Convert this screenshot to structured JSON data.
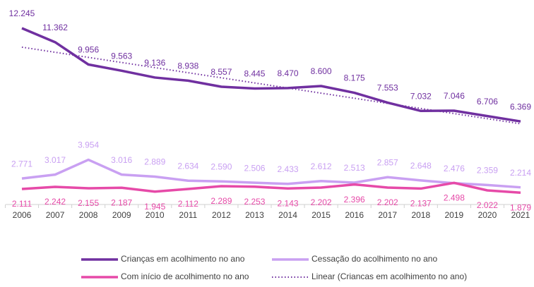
{
  "chart_data": {
    "type": "line",
    "categories": [
      "2006",
      "2007",
      "2008",
      "2009",
      "2010",
      "2011",
      "2012",
      "2013",
      "2014",
      "2015",
      "2016",
      "2017",
      "2018",
      "2019",
      "2020",
      "2021"
    ],
    "ylim": [
      1000,
      13000
    ],
    "grid": false,
    "legend": "bottom",
    "series": [
      {
        "name": "Crianças em acolhimento no ano",
        "color": "#7030a0",
        "style": "solid",
        "label_position": "above",
        "values": [
          12245,
          11362,
          9956,
          9563,
          9136,
          8938,
          8557,
          8445,
          8470,
          8600,
          8175,
          7553,
          7032,
          7046,
          6706,
          6369
        ],
        "value_labels": [
          "12.245",
          "11.362",
          "9.956",
          "9.563",
          "9.136",
          "8.938",
          "8.557",
          "8.445",
          "8.470",
          "8.600",
          "8.175",
          "7.553",
          "7.032",
          "7.046",
          "6.706",
          "6.369"
        ]
      },
      {
        "name": "Cessação do acolhimento no ano",
        "color": "#c9a0f2",
        "style": "solid",
        "label_position": "above",
        "values": [
          2771,
          3017,
          3954,
          3016,
          2889,
          2634,
          2590,
          2506,
          2433,
          2612,
          2513,
          2857,
          2648,
          2476,
          2359,
          2214
        ],
        "value_labels": [
          "2.771",
          "3.017",
          "3.954",
          "3.016",
          "2.889",
          "2.634",
          "2.590",
          "2.506",
          "2.433",
          "2.612",
          "2.513",
          "2.857",
          "2.648",
          "2.476",
          "2.359",
          "2.214"
        ]
      },
      {
        "name": "Com início de acolhimento no ano",
        "color": "#e64aa8",
        "style": "solid",
        "label_position": "below",
        "values": [
          2111,
          2242,
          2155,
          2187,
          1945,
          2112,
          2289,
          2253,
          2143,
          2202,
          2396,
          2202,
          2137,
          2498,
          2022,
          1879
        ],
        "value_labels": [
          "2.111",
          "2.242",
          "2.155",
          "2.187",
          "1.945",
          "2.112",
          "2.289",
          "2.253",
          "2.143",
          "2.202",
          "2.396",
          "2.202",
          "2.137",
          "2.498",
          "2.022",
          "1.879"
        ]
      },
      {
        "name": "Linear (Criancas em acolhimento no ano)",
        "color": "#7030a0",
        "style": "dotted",
        "values": [
          11050,
          10728,
          10406,
          10084,
          9762,
          9440,
          9118,
          8796,
          8474,
          8152,
          7830,
          7508,
          7186,
          6864,
          6542,
          6220
        ]
      }
    ]
  }
}
